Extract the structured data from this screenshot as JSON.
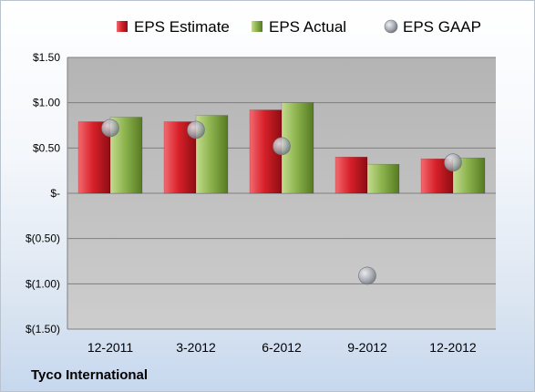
{
  "chart_data": {
    "type": "bar",
    "categories": [
      "12-2011",
      "3-2012",
      "6-2012",
      "9-2012",
      "12-2012"
    ],
    "series": [
      {
        "name": "EPS Estimate",
        "kind": "bar",
        "color": "#c0141c",
        "values": [
          0.79,
          0.79,
          0.92,
          0.4,
          0.38
        ]
      },
      {
        "name": "EPS Actual",
        "kind": "bar",
        "color": "#7aa03a",
        "values": [
          0.84,
          0.86,
          1.0,
          0.32,
          0.39
        ]
      },
      {
        "name": "EPS GAAP",
        "kind": "scatter",
        "color": "#9ea3aa",
        "values": [
          0.72,
          0.7,
          0.52,
          -0.91,
          0.34
        ]
      }
    ],
    "ylim": [
      -1.5,
      1.5
    ],
    "yticks": [
      {
        "value": 1.5,
        "label": "$1.50"
      },
      {
        "value": 1.0,
        "label": "$1.00"
      },
      {
        "value": 0.5,
        "label": "$0.50"
      },
      {
        "value": 0.0,
        "label": "$-"
      },
      {
        "value": -0.5,
        "label": "$(0.50)"
      },
      {
        "value": -1.0,
        "label": "$(1.00)"
      },
      {
        "value": -1.5,
        "label": "$(1.50)"
      }
    ],
    "grid": true,
    "legend_position": "top"
  },
  "footer": {
    "company": "Tyco International"
  }
}
